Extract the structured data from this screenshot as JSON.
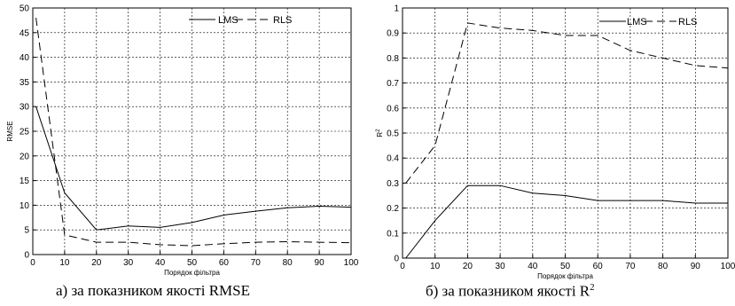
{
  "chart_data": [
    {
      "type": "line",
      "caption": "а) за показником якості RMSE",
      "xlabel": "Порядок фільтра",
      "ylabel": "RMSE",
      "xlim": [
        0,
        100
      ],
      "ylim": [
        0,
        50
      ],
      "xticks": [
        "0",
        "10",
        "20",
        "30",
        "40",
        "50",
        "60",
        "70",
        "80",
        "90",
        "100"
      ],
      "yticks": [
        "0",
        "5",
        "10",
        "15",
        "20",
        "25",
        "30",
        "35",
        "40",
        "45",
        "50"
      ],
      "grid": true,
      "legend": "top-right",
      "series": [
        {
          "name": "LMS",
          "style": "solid",
          "x": [
            1,
            10,
            20,
            30,
            40,
            50,
            60,
            70,
            80,
            90,
            100
          ],
          "y": [
            30,
            12.5,
            5,
            5.8,
            5.5,
            6.5,
            8,
            8.8,
            9.5,
            9.8,
            9.6
          ]
        },
        {
          "name": "RLS",
          "style": "dashed",
          "x": [
            1,
            10,
            20,
            30,
            40,
            50,
            60,
            70,
            80,
            90,
            100
          ],
          "y": [
            48,
            4,
            2.5,
            2.5,
            2,
            1.8,
            2.2,
            2.5,
            2.6,
            2.5,
            2.4
          ]
        }
      ]
    },
    {
      "type": "line",
      "caption_main": "б) за показником якості R",
      "caption_sup": "2",
      "xlabel": "Порядок фільтра",
      "ylabel_main": "R",
      "ylabel_sup": "2",
      "xlim": [
        0,
        100
      ],
      "ylim": [
        0,
        1
      ],
      "xticks": [
        "0",
        "10",
        "20",
        "30",
        "40",
        "50",
        "60",
        "70",
        "80",
        "90",
        "100"
      ],
      "yticks": [
        "0",
        "0.1",
        "0.2",
        "0.3",
        "0.4",
        "0.5",
        "0.6",
        "0.7",
        "0.8",
        "0.9",
        "1"
      ],
      "grid": true,
      "legend": "top-right",
      "series": [
        {
          "name": "LMS",
          "style": "solid",
          "x": [
            1,
            10,
            20,
            30,
            40,
            50,
            60,
            70,
            80,
            90,
            100
          ],
          "y": [
            0,
            0.15,
            0.29,
            0.29,
            0.26,
            0.25,
            0.23,
            0.23,
            0.23,
            0.22,
            0.22
          ]
        },
        {
          "name": "RLS",
          "style": "dashed",
          "x": [
            1,
            10,
            20,
            30,
            40,
            50,
            60,
            70,
            80,
            90,
            100
          ],
          "y": [
            0.3,
            0.45,
            0.94,
            0.92,
            0.91,
            0.89,
            0.89,
            0.83,
            0.8,
            0.77,
            0.76
          ]
        }
      ]
    }
  ]
}
